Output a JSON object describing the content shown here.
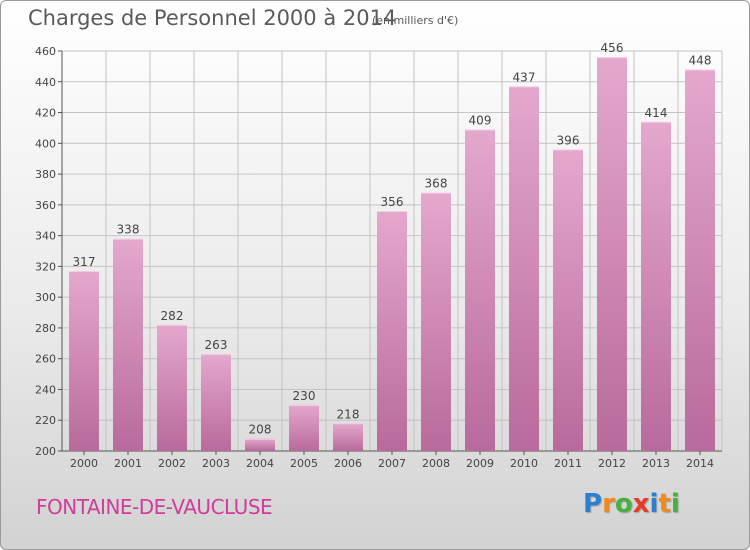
{
  "chart_data": {
    "type": "bar",
    "title": "Charges de Personnel 2000 à 2014",
    "subtitle": "(en milliers d'€)",
    "categories": [
      "2000",
      "2001",
      "2002",
      "2003",
      "2004",
      "2005",
      "2006",
      "2007",
      "2008",
      "2009",
      "2010",
      "2011",
      "2012",
      "2013",
      "2014"
    ],
    "values": [
      317,
      338,
      282,
      263,
      208,
      230,
      218,
      356,
      368,
      409,
      437,
      396,
      456,
      414,
      448
    ],
    "ylim": [
      200,
      460
    ],
    "yticks": [
      200,
      220,
      240,
      260,
      280,
      300,
      320,
      340,
      360,
      380,
      400,
      420,
      440,
      460
    ],
    "grid": true,
    "bar_color": "#d68ab8"
  },
  "footer": {
    "place": "FONTAINE-DE-VAUCLUSE",
    "logo_letters": [
      "P",
      "r",
      "o",
      "x",
      "i",
      "t",
      "i"
    ],
    "logo_colors": [
      "#2a7fd0",
      "#f08a1c",
      "#48b040",
      "#e83a2a",
      "#2a7fd0",
      "#f08a1c",
      "#48b040"
    ]
  }
}
